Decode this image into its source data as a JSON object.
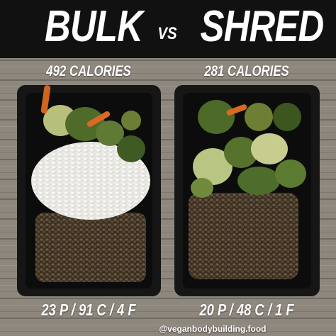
{
  "header": {
    "left_title": "BULK",
    "separator": "VS",
    "right_title": "SHRED"
  },
  "panels": [
    {
      "calories": "492 CALORIES",
      "macros": "23 P / 91 C / 4 F"
    },
    {
      "calories": "281 CALORIES",
      "macros": "20 P / 48 C / 1 F"
    }
  ],
  "footer": {
    "credit": "@veganbodybuilding.food"
  }
}
